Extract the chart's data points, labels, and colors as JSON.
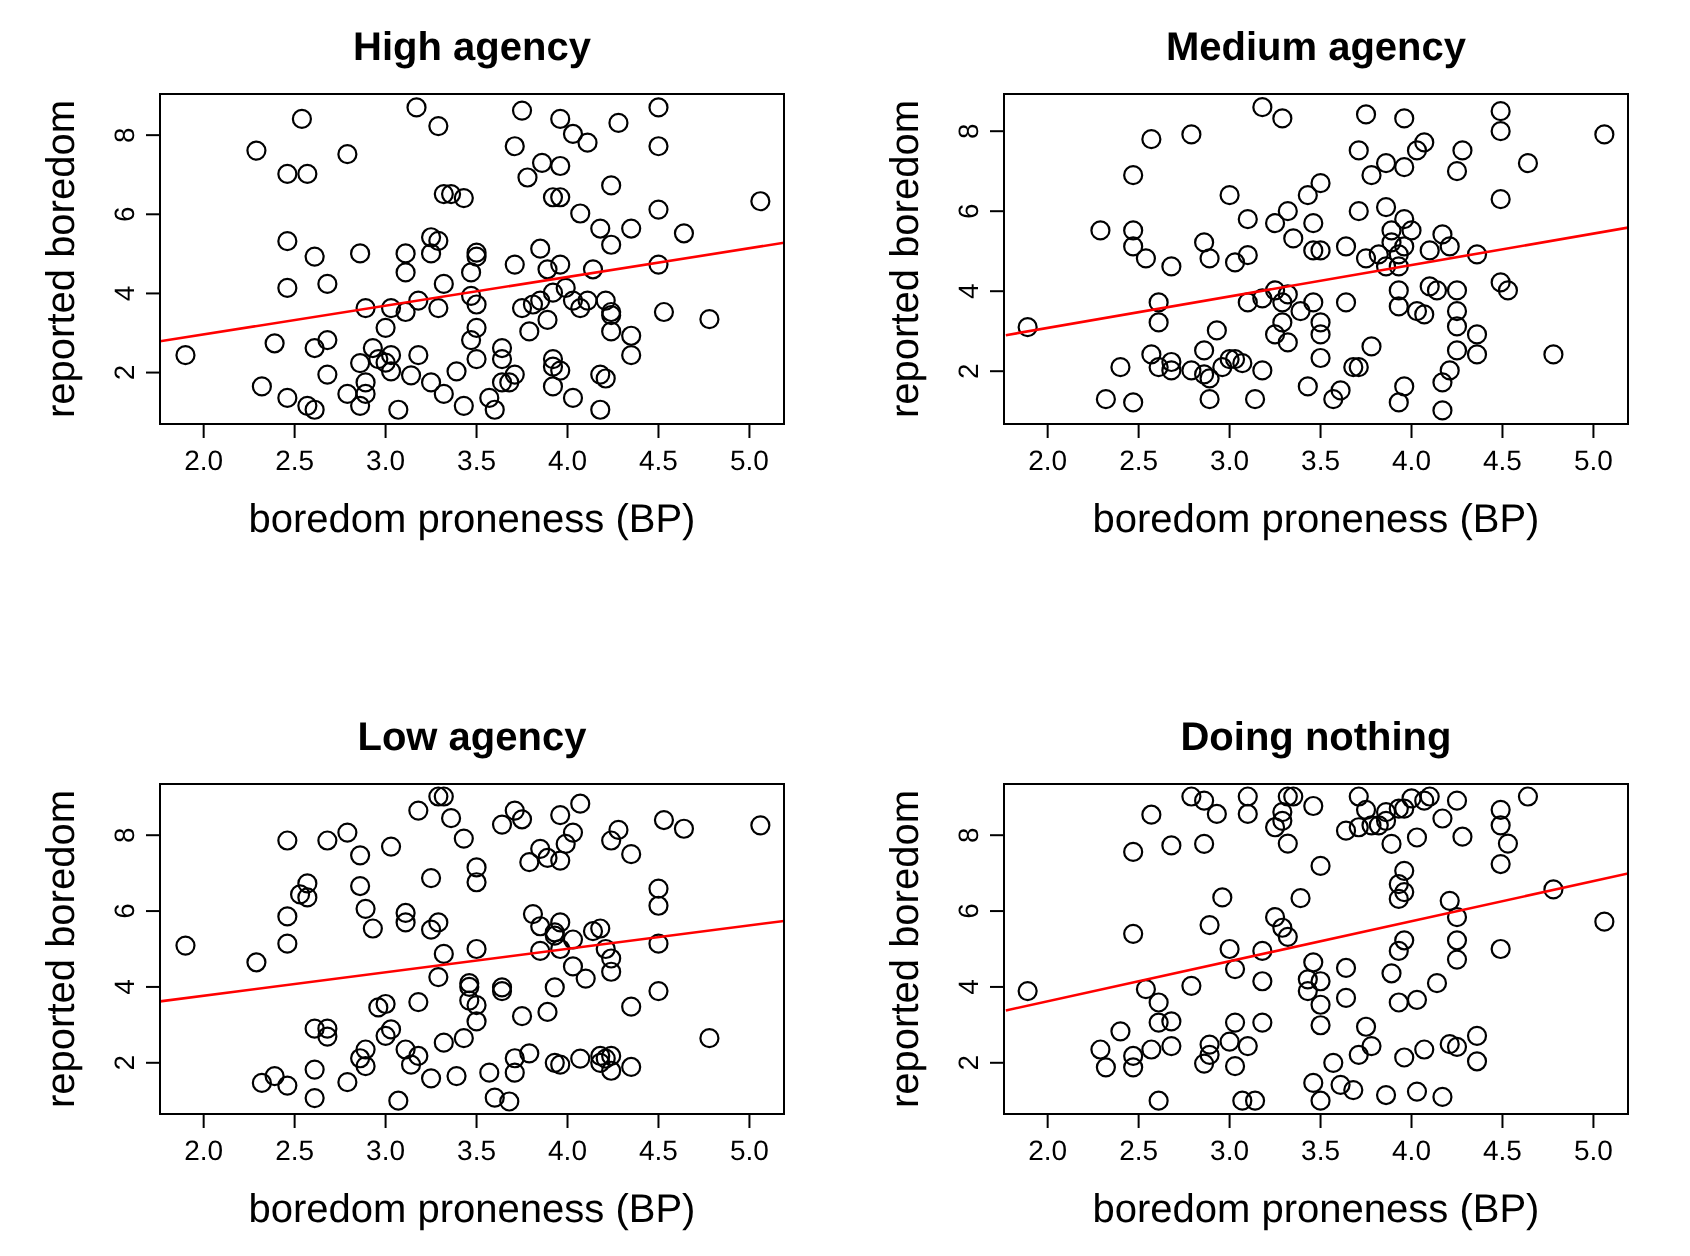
{
  "chart_data": [
    {
      "type": "scatter",
      "title": "High agency",
      "xlabel": "boredom proneness (BP)",
      "ylabel": "reported boredom",
      "xlim": [
        1.76,
        5.19
      ],
      "ylim": [
        0.7,
        9.04
      ],
      "xticks": [
        {
          "value": 2,
          "label": "2.0"
        },
        {
          "value": 2.5,
          "label": "2.5"
        },
        {
          "value": 3,
          "label": "3.0"
        },
        {
          "value": 3.5,
          "label": "3.5"
        },
        {
          "value": 4,
          "label": "4.0"
        },
        {
          "value": 4.5,
          "label": "4.5"
        },
        {
          "value": 5,
          "label": "5.0"
        }
      ],
      "yticks": [
        2,
        4,
        6,
        8
      ],
      "series": [
        {
          "marker": "circle",
          "color": "#000000",
          "x": [
            3.17,
            3.75,
            3.96,
            4.5,
            2.54,
            3.29,
            4.28,
            4.03,
            4.11,
            2.29,
            2.79,
            3.71,
            4.5,
            3.86,
            3.96,
            2.46,
            2.57,
            3.78,
            4.24,
            3.32,
            3.36,
            3.43,
            3.92,
            3.96,
            5.06,
            4.07,
            4.5,
            4.18,
            4.35,
            4.64,
            4.24,
            2.46,
            3.25,
            3.29,
            3.85,
            2.61,
            2.86,
            3.11,
            3.25,
            3.5,
            3.5,
            3.71,
            3.96,
            3.89,
            4.14,
            4.5,
            3.11,
            3.47,
            2.46,
            2.68,
            3.32,
            3.92,
            3.99,
            3.47,
            3.5,
            3.18,
            2.89,
            3.03,
            3.11,
            3.29,
            3.75,
            3.81,
            3.85,
            4.03,
            4.07,
            4.11,
            4.21,
            4.24,
            4.24,
            4.53,
            4.78,
            3.89,
            3.0,
            3.5,
            3.79,
            4.24,
            4.35,
            1.9,
            2.39,
            2.61,
            2.68,
            2.93,
            3.47,
            3.64,
            2.96,
            3.0,
            3.03,
            2.86,
            3.18,
            3.5,
            3.64,
            3.92,
            3.92,
            3.96,
            4.35,
            2.68,
            3.03,
            3.14,
            3.39,
            3.71,
            4.18,
            4.21,
            2.89,
            3.25,
            3.64,
            3.68,
            3.92,
            2.32,
            2.79,
            2.89,
            3.32,
            2.46,
            3.57,
            4.03,
            2.57,
            2.61,
            2.86,
            3.07,
            3.43,
            3.6,
            4.18
          ],
          "values": [
            8.7,
            8.62,
            8.41,
            8.7,
            8.41,
            8.23,
            8.31,
            8.03,
            7.81,
            7.61,
            7.52,
            7.72,
            7.72,
            7.3,
            7.22,
            7.02,
            7.02,
            6.93,
            6.73,
            6.51,
            6.51,
            6.41,
            6.43,
            6.43,
            6.33,
            6.02,
            6.12,
            5.64,
            5.64,
            5.52,
            5.23,
            5.32,
            5.42,
            5.33,
            5.13,
            4.93,
            5.01,
            5.01,
            5.01,
            5.03,
            4.93,
            4.73,
            4.73,
            4.61,
            4.61,
            4.73,
            4.53,
            4.53,
            4.14,
            4.24,
            4.24,
            4.02,
            4.14,
            3.94,
            3.72,
            3.82,
            3.63,
            3.63,
            3.53,
            3.63,
            3.63,
            3.72,
            3.82,
            3.82,
            3.63,
            3.82,
            3.82,
            3.53,
            3.45,
            3.53,
            3.35,
            3.33,
            3.13,
            3.13,
            3.04,
            3.04,
            2.93,
            2.44,
            2.74,
            2.62,
            2.82,
            2.62,
            2.82,
            2.62,
            2.34,
            2.25,
            2.44,
            2.24,
            2.44,
            2.34,
            2.34,
            2.34,
            2.15,
            2.05,
            2.44,
            1.95,
            2.03,
            1.93,
            2.03,
            1.95,
            1.95,
            1.85,
            1.75,
            1.75,
            1.75,
            1.75,
            1.65,
            1.65,
            1.46,
            1.46,
            1.46,
            1.36,
            1.36,
            1.36,
            1.16,
            1.06,
            1.16,
            1.06,
            1.16,
            1.06,
            1.06
          ]
        },
        {
          "type": "line",
          "color": "#ff0000",
          "x": [
            1.76,
            5.19
          ],
          "values": [
            2.79,
            5.28
          ]
        }
      ]
    },
    {
      "type": "scatter",
      "title": "Medium agency",
      "xlabel": "boredom proneness (BP)",
      "ylabel": "reported boredom",
      "xlim": [
        1.76,
        5.19
      ],
      "ylim": [
        0.68,
        8.93
      ],
      "xticks": [
        {
          "value": 2,
          "label": "2.0"
        },
        {
          "value": 2.5,
          "label": "2.5"
        },
        {
          "value": 3,
          "label": "3.0"
        },
        {
          "value": 3.5,
          "label": "3.5"
        },
        {
          "value": 4,
          "label": "4.0"
        },
        {
          "value": 4.5,
          "label": "4.5"
        },
        {
          "value": 5,
          "label": "5.0"
        }
      ],
      "yticks": [
        2,
        4,
        6,
        8
      ],
      "series": [
        {
          "marker": "circle",
          "color": "#000000",
          "x": [
            1.89,
            2.29,
            2.32,
            2.4,
            2.47,
            2.47,
            2.47,
            2.47,
            2.54,
            2.57,
            2.61,
            2.61,
            2.57,
            2.61,
            2.68,
            2.68,
            2.68,
            2.79,
            2.79,
            2.86,
            2.89,
            2.86,
            2.86,
            2.89,
            2.89,
            2.93,
            2.96,
            3.0,
            3.0,
            3.03,
            3.07,
            3.03,
            3.1,
            3.1,
            3.1,
            3.14,
            3.18,
            3.18,
            3.18,
            3.29,
            3.25,
            3.32,
            3.25,
            3.29,
            3.32,
            3.29,
            3.25,
            3.32,
            3.35,
            3.39,
            3.43,
            3.46,
            3.46,
            3.5,
            3.46,
            3.5,
            3.5,
            3.5,
            3.5,
            3.43,
            3.57,
            3.61,
            3.64,
            3.64,
            3.68,
            3.71,
            3.78,
            3.71,
            3.75,
            3.71,
            3.75,
            3.78,
            3.82,
            3.86,
            3.86,
            3.86,
            3.89,
            3.89,
            3.93,
            3.93,
            3.96,
            3.96,
            3.96,
            3.96,
            4.0,
            3.93,
            3.93,
            3.93,
            3.96,
            4.03,
            4.07,
            4.03,
            4.07,
            4.1,
            4.1,
            4.14,
            4.17,
            4.21,
            4.25,
            4.28,
            4.25,
            4.25,
            4.25,
            4.25,
            4.21,
            4.17,
            4.17,
            4.36,
            4.36,
            4.36,
            4.49,
            4.49,
            4.49,
            4.49,
            4.53,
            4.64,
            4.78,
            5.06
          ],
          "values": [
            3.1,
            5.52,
            1.3,
            2.1,
            6.9,
            5.52,
            5.12,
            1.22,
            4.82,
            7.8,
            3.72,
            3.22,
            2.42,
            2.1,
            2.23,
            2.02,
            4.62,
            7.92,
            2.02,
            5.22,
            4.82,
            2.52,
            1.92,
            1.82,
            1.3,
            3.02,
            2.1,
            6.4,
            2.3,
            2.3,
            2.2,
            4.72,
            5.8,
            4.9,
            3.72,
            1.3,
            2.02,
            8.6,
            3.82,
            8.32,
            5.7,
            6.0,
            4.02,
            3.72,
            3.92,
            3.22,
            2.92,
            2.72,
            5.32,
            3.5,
            6.4,
            5.7,
            5.02,
            5.02,
            3.72,
            6.7,
            3.22,
            2.92,
            2.33,
            1.62,
            1.3,
            1.52,
            5.12,
            3.72,
            2.1,
            2.1,
            2.62,
            7.52,
            8.42,
            6.0,
            4.82,
            6.9,
            4.92,
            7.2,
            6.1,
            4.62,
            5.52,
            5.22,
            4.92,
            4.62,
            8.32,
            7.1,
            5.8,
            5.12,
            5.52,
            4.02,
            3.62,
            1.22,
            1.62,
            7.52,
            7.72,
            3.5,
            3.42,
            5.02,
            4.12,
            4.02,
            5.42,
            5.12,
            7.0,
            7.52,
            4.02,
            3.5,
            3.12,
            2.52,
            2.02,
            1.72,
            1.02,
            4.92,
            2.92,
            2.42,
            8.5,
            8.0,
            6.3,
            4.22,
            4.02,
            7.2,
            2.42,
            7.92
          ]
        },
        {
          "type": "line",
          "color": "#ff0000",
          "x": [
            1.77,
            5.19
          ],
          "values": [
            2.9,
            5.59
          ]
        }
      ]
    },
    {
      "type": "scatter",
      "title": "Low agency",
      "xlabel": "boredom proneness (BP)",
      "ylabel": "reported boredom",
      "xlim": [
        1.76,
        5.19
      ],
      "ylim": [
        0.65,
        9.35
      ],
      "xticks": [
        {
          "value": 2,
          "label": "2.0"
        },
        {
          "value": 2.5,
          "label": "2.5"
        },
        {
          "value": 3,
          "label": "3.0"
        },
        {
          "value": 3.5,
          "label": "3.5"
        },
        {
          "value": 4,
          "label": "4.0"
        },
        {
          "value": 4.5,
          "label": "4.5"
        },
        {
          "value": 5,
          "label": "5.0"
        }
      ],
      "yticks": [
        2,
        4,
        6,
        8
      ],
      "series": [
        {
          "marker": "circle",
          "color": "#000000",
          "x": [
            1.9,
            2.29,
            2.32,
            2.39,
            2.46,
            2.46,
            2.46,
            2.46,
            2.53,
            2.57,
            2.57,
            2.61,
            2.68,
            2.68,
            2.61,
            2.61,
            2.68,
            2.79,
            2.86,
            2.86,
            2.89,
            2.93,
            2.79,
            2.86,
            2.89,
            2.89,
            2.96,
            3.0,
            3.0,
            3.03,
            3.07,
            3.03,
            3.11,
            3.11,
            3.11,
            3.14,
            3.18,
            3.18,
            3.18,
            3.25,
            3.25,
            3.29,
            3.29,
            3.32,
            3.36,
            3.32,
            3.29,
            3.32,
            3.25,
            3.39,
            3.43,
            3.43,
            3.46,
            3.46,
            3.46,
            3.5,
            3.5,
            3.5,
            3.5,
            3.5,
            3.57,
            3.6,
            3.68,
            3.64,
            3.71,
            3.75,
            3.64,
            3.64,
            3.71,
            3.71,
            3.75,
            3.79,
            3.79,
            3.81,
            3.85,
            3.89,
            3.85,
            3.85,
            3.93,
            3.93,
            3.96,
            3.96,
            3.96,
            3.96,
            3.99,
            4.03,
            4.07,
            3.93,
            3.89,
            3.93,
            3.96,
            4.03,
            4.03,
            4.1,
            4.07,
            4.14,
            4.18,
            4.21,
            4.24,
            4.24,
            4.18,
            4.18,
            4.21,
            4.24,
            4.24,
            4.24,
            4.28,
            4.35,
            4.35,
            4.35,
            4.5,
            4.5,
            4.5,
            4.5,
            4.53,
            4.64,
            4.78,
            5.06
          ],
          "values": [
            5.09,
            4.65,
            1.47,
            1.65,
            1.4,
            7.86,
            5.86,
            5.14,
            6.44,
            6.73,
            6.36,
            2.9,
            2.9,
            2.69,
            1.82,
            1.07,
            7.86,
            8.07,
            7.47,
            6.66,
            6.06,
            5.54,
            1.49,
            2.12,
            2.35,
            1.91,
            3.46,
            3.55,
            2.71,
            2.88,
            1.0,
            7.7,
            5.95,
            5.7,
            2.35,
            1.95,
            2.18,
            3.6,
            8.65,
            6.87,
            5.51,
            5.7,
            9.02,
            9.02,
            8.45,
            4.87,
            4.26,
            2.53,
            1.59,
            1.65,
            7.91,
            2.65,
            4.1,
            4.0,
            3.64,
            3.52,
            7.15,
            6.76,
            5.0,
            3.09,
            1.74,
            1.08,
            0.98,
            8.28,
            8.65,
            8.42,
            3.99,
            3.89,
            2.12,
            1.74,
            3.23,
            2.25,
            7.29,
            5.92,
            7.64,
            7.4,
            5.6,
            4.95,
            5.44,
            5.35,
            5.7,
            5.0,
            8.53,
            7.33,
            7.77,
            8.07,
            8.83,
            3.99,
            3.34,
            2.0,
            1.95,
            5.25,
            4.54,
            4.22,
            2.11,
            5.47,
            5.54,
            5.0,
            4.75,
            4.4,
            2.18,
            2.0,
            2.11,
            2.18,
            1.79,
            7.86,
            8.14,
            7.5,
            3.48,
            1.89,
            6.59,
            6.14,
            5.14,
            3.89,
            8.4,
            8.17,
            2.65,
            8.26
          ]
        },
        {
          "type": "line",
          "color": "#ff0000",
          "x": [
            1.76,
            5.19
          ],
          "values": [
            3.62,
            5.74
          ]
        }
      ]
    },
    {
      "type": "scatter",
      "title": "Doing nothing",
      "xlabel": "boredom proneness (BP)",
      "ylabel": "reported boredom",
      "xlim": [
        1.76,
        5.19
      ],
      "ylim": [
        0.65,
        9.35
      ],
      "xticks": [
        {
          "value": 2,
          "label": "2.0"
        },
        {
          "value": 2.5,
          "label": "2.5"
        },
        {
          "value": 3,
          "label": "3.0"
        },
        {
          "value": 3.5,
          "label": "3.5"
        },
        {
          "value": 4,
          "label": "4.0"
        },
        {
          "value": 4.5,
          "label": "4.5"
        },
        {
          "value": 5,
          "label": "5.0"
        }
      ],
      "yticks": [
        2,
        4,
        6,
        8
      ],
      "series": [
        {
          "marker": "circle",
          "color": "#000000",
          "x": [
            1.89,
            2.29,
            2.32,
            2.4,
            2.47,
            2.47,
            2.47,
            2.47,
            2.54,
            2.57,
            2.61,
            2.57,
            2.61,
            2.68,
            2.68,
            2.61,
            2.68,
            2.79,
            2.86,
            2.93,
            2.86,
            2.79,
            2.89,
            2.96,
            2.89,
            2.89,
            2.86,
            3.0,
            3.03,
            3.03,
            3.0,
            3.03,
            3.1,
            3.1,
            3.1,
            3.07,
            3.14,
            3.18,
            3.18,
            3.18,
            3.25,
            3.29,
            3.29,
            3.32,
            3.35,
            3.32,
            3.25,
            3.29,
            3.32,
            3.46,
            3.39,
            3.43,
            3.43,
            3.46,
            3.5,
            3.5,
            3.5,
            3.5,
            3.46,
            3.5,
            3.57,
            3.61,
            3.68,
            3.64,
            3.64,
            3.64,
            3.71,
            3.71,
            3.75,
            3.78,
            3.82,
            3.86,
            3.86,
            3.75,
            3.78,
            3.71,
            3.86,
            3.89,
            3.93,
            3.96,
            4.0,
            4.07,
            4.1,
            3.89,
            3.93,
            3.96,
            3.96,
            3.93,
            3.96,
            3.93,
            3.93,
            4.03,
            3.96,
            4.03,
            4.03,
            4.07,
            4.14,
            4.17,
            4.17,
            4.21,
            4.25,
            4.25,
            4.25,
            4.25,
            4.28,
            4.21,
            4.25,
            4.36,
            4.36,
            4.49,
            4.49,
            4.53,
            4.49,
            4.49,
            4.64,
            4.78,
            5.06
          ],
          "values": [
            3.89,
            2.35,
            1.88,
            2.83,
            7.56,
            5.4,
            2.18,
            1.88,
            3.94,
            8.54,
            3.59,
            2.35,
            3.06,
            3.09,
            2.44,
            1.0,
            7.73,
            9.02,
            8.91,
            8.56,
            7.77,
            4.03,
            5.63,
            6.36,
            2.48,
            2.21,
            1.98,
            5.0,
            4.47,
            3.06,
            2.56,
            1.91,
            9.02,
            8.56,
            2.44,
            1.0,
            1.0,
            4.95,
            4.15,
            3.06,
            8.21,
            8.38,
            8.61,
            9.02,
            9.02,
            7.78,
            5.84,
            5.56,
            5.32,
            8.77,
            6.34,
            4.2,
            3.89,
            4.65,
            4.15,
            3.53,
            7.19,
            2.99,
            1.47,
            1.0,
            2.0,
            1.42,
            1.28,
            4.5,
            3.71,
            8.12,
            8.21,
            9.02,
            8.67,
            8.26,
            8.26,
            8.38,
            8.61,
            2.95,
            2.44,
            2.21,
            1.15,
            7.77,
            8.7,
            8.7,
            8.97,
            8.91,
            9.02,
            4.36,
            6.71,
            7.06,
            6.5,
            6.32,
            5.23,
            4.95,
            3.59,
            3.66,
            2.14,
            7.94,
            1.24,
            2.35,
            4.1,
            8.44,
            1.1,
            6.27,
            5.84,
            5.23,
            4.72,
            8.91,
            7.96,
            2.49,
            2.42,
            2.71,
            2.04,
            8.67,
            8.26,
            7.78,
            7.24,
            5.0,
            9.02,
            6.57,
            5.72
          ]
        },
        {
          "type": "line",
          "color": "#ff0000",
          "x": [
            1.77,
            5.19
          ],
          "values": [
            3.38,
            6.99
          ]
        }
      ]
    }
  ]
}
